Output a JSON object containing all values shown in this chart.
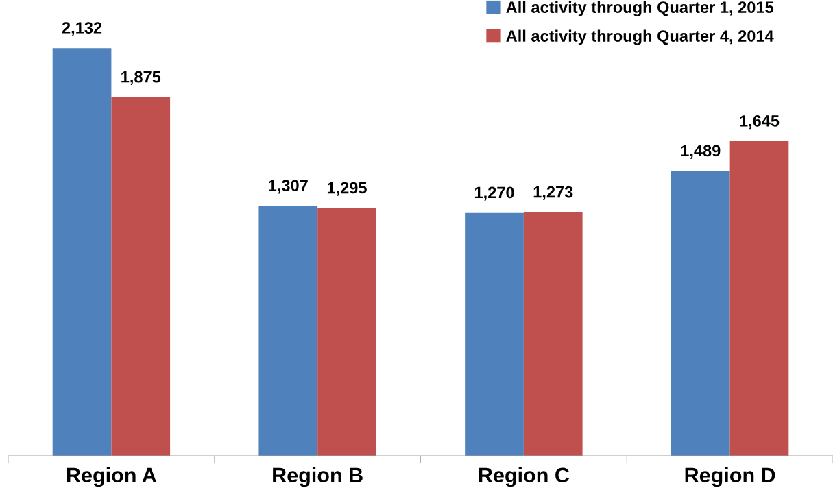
{
  "chart_data": {
    "type": "bar",
    "categories": [
      "Region A",
      "Region B",
      "Region C",
      "Region D"
    ],
    "series": [
      {
        "name": "All activity through Quarter 1, 2015",
        "color": "#4f81bd",
        "values": [
          2132,
          1307,
          1270,
          1489
        ],
        "value_labels": [
          "2,132",
          "1,307",
          "1,270",
          "1,489"
        ]
      },
      {
        "name": "All activity through Quarter 4, 2014",
        "color": "#c0504d",
        "values": [
          1875,
          1295,
          1273,
          1645
        ],
        "value_labels": [
          "1,875",
          "1,295",
          "1,273",
          "1,645"
        ]
      }
    ],
    "legend": "top right",
    "grid": false
  }
}
